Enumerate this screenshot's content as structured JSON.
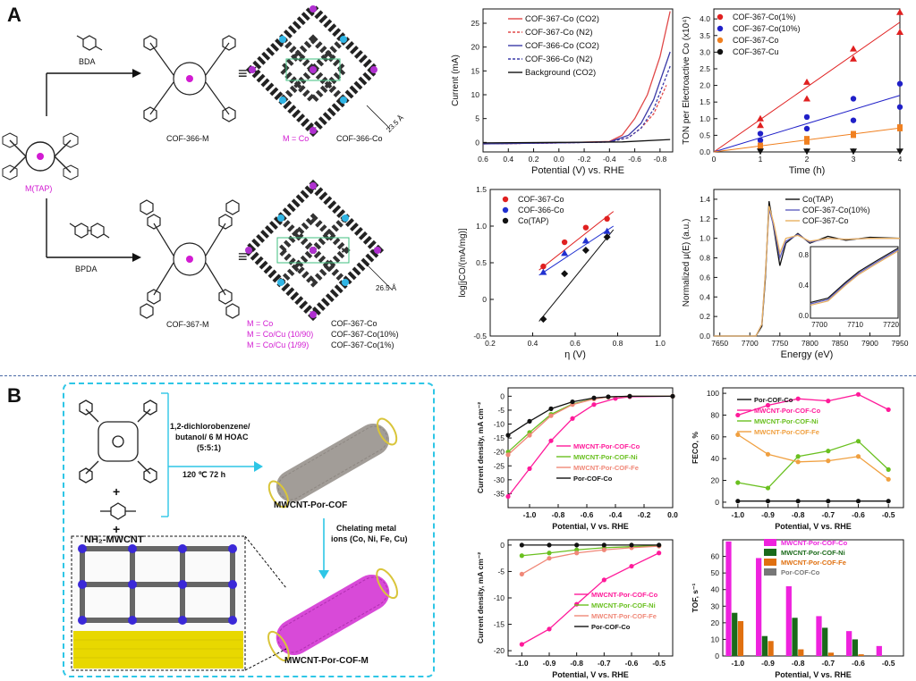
{
  "panelA": {
    "letter": "A",
    "scheme": {
      "reagent_top": "BDA",
      "reagent_bottom": "BPDA",
      "precursor_label": "M(TAP)",
      "cof366_label": "COF-366-M",
      "cof367_label": "COF-367-M",
      "eq": "≡",
      "top_metal_line": "M = Co",
      "top_metal_product": "COF-366-Co",
      "top_distance": "23.5 Å",
      "bottom_distance": "26.5 Å",
      "bottom_metals": [
        "M = Co",
        "M = Co/Cu (10/90)",
        "M = Co/Cu (1/99)"
      ],
      "bottom_products": [
        "COF-367-Co",
        "COF-367-Co(10%)",
        "COF-367-Co(1%)"
      ]
    }
  },
  "panelB": {
    "letter": "B",
    "scheme": {
      "conditions_1": "1,2-dichlorobenzene/",
      "conditions_2": "butanol/ 6 M HOAC",
      "conditions_3": "(5:5:1)",
      "conditions_4": "120 ℃  72 h",
      "product1": "MWCNT-Por-COF",
      "chelating_1": "Chelating metal",
      "chelating_2": "ions (Co, Ni, Fe, Cu)",
      "product2": "MWCNT-Por-COF-M",
      "reagent_cnt": "NH₂-MWCNT",
      "plus": "+"
    }
  },
  "chart_data": [
    {
      "id": "A1",
      "type": "line",
      "xlabel": "Potential (V) vs. RHE",
      "ylabel": "Current (mA)",
      "xlim": [
        0.6,
        -0.9
      ],
      "ylim": [
        -2,
        28
      ],
      "xticks": [
        "0.6",
        "0.4",
        "0.2",
        "0.0",
        "-0.2",
        "-0.4",
        "-0.6",
        "-0.8"
      ],
      "yticks": [
        "0",
        "5",
        "10",
        "15",
        "20",
        "25"
      ],
      "legend": [
        "COF-367-Co (CO2)",
        "COF-367-Co (N2)",
        "COF-366-Co (CO2)",
        "COF-366-Co (N2)",
        "Background (CO2)"
      ],
      "colors": [
        "#e04848",
        "#e04848",
        "#3a3aa8",
        "#3a3aa8",
        "#111111"
      ],
      "series": [
        {
          "name": "COF-367-Co (CO2)",
          "x": [
            0.6,
            0.0,
            -0.4,
            -0.5,
            -0.6,
            -0.7,
            -0.8,
            -0.88
          ],
          "values": [
            -0.3,
            -0.1,
            0.2,
            1.5,
            5,
            10,
            18,
            27.5
          ]
        },
        {
          "name": "COF-367-Co (N2)",
          "x": [
            0.6,
            0.0,
            -0.4,
            -0.55,
            -0.65,
            -0.75,
            -0.85
          ],
          "values": [
            -0.3,
            -0.1,
            0.1,
            1,
            3,
            6,
            12
          ]
        },
        {
          "name": "COF-366-Co (CO2)",
          "x": [
            0.6,
            0.0,
            -0.4,
            -0.55,
            -0.65,
            -0.75,
            -0.88
          ],
          "values": [
            -0.3,
            -0.1,
            0.1,
            1.5,
            4,
            9,
            19
          ]
        },
        {
          "name": "COF-366-Co (N2)",
          "x": [
            0.6,
            0.0,
            -0.4,
            -0.55,
            -0.65,
            -0.75,
            -0.88
          ],
          "values": [
            -0.3,
            -0.1,
            0.1,
            1,
            3,
            7,
            16
          ]
        },
        {
          "name": "Background (CO2)",
          "x": [
            0.6,
            0.0,
            -0.5,
            -0.88
          ],
          "values": [
            -0.1,
            0,
            0.1,
            0.6
          ]
        }
      ]
    },
    {
      "id": "A2",
      "type": "scatter",
      "xlabel": "Time (h)",
      "ylabel": "TON per Electroactive Co (x10⁴)",
      "xlim": [
        0,
        4
      ],
      "ylim": [
        0,
        4.3
      ],
      "xticks": [
        "0",
        "1",
        "2",
        "3",
        "4"
      ],
      "yticks": [
        "0.0",
        "0.5",
        "1.0",
        "1.5",
        "2.0",
        "2.5",
        "3.0",
        "3.5",
        "4.0"
      ],
      "legend": [
        "COF-367-Co(1%)",
        "COF-367-Co(10%)",
        "COF-367-Co",
        "COF-367-Cu"
      ],
      "colors": [
        "#e02020",
        "#2020c8",
        "#f08020",
        "#111111"
      ],
      "series": [
        {
          "name": "COF-367-Co(1%)",
          "x": [
            1,
            1,
            2,
            2,
            3,
            3,
            4,
            4
          ],
          "values": [
            1.0,
            0.8,
            2.1,
            1.6,
            3.1,
            2.8,
            4.2,
            3.6
          ]
        },
        {
          "name": "COF-367-Co(10%)",
          "x": [
            1,
            1,
            2,
            2,
            3,
            3,
            4,
            4
          ],
          "values": [
            0.55,
            0.35,
            1.05,
            0.7,
            1.6,
            0.95,
            2.05,
            1.35
          ]
        },
        {
          "name": "COF-367-Co",
          "x": [
            1,
            1,
            2,
            2,
            3,
            3,
            4,
            4
          ],
          "values": [
            0.2,
            0.15,
            0.4,
            0.3,
            0.55,
            0.5,
            0.75,
            0.7
          ]
        },
        {
          "name": "COF-367-Cu",
          "x": [
            1,
            2,
            3,
            4
          ],
          "values": [
            0.02,
            0.02,
            0.02,
            0.02
          ]
        }
      ],
      "fits": [
        {
          "name": "COF-367-Co(1%)",
          "x": [
            0,
            4
          ],
          "values": [
            0,
            3.9
          ]
        },
        {
          "name": "COF-367-Co(10%)",
          "x": [
            0,
            4
          ],
          "values": [
            0,
            1.7
          ]
        },
        {
          "name": "COF-367-Co",
          "x": [
            0,
            4
          ],
          "values": [
            0,
            0.72
          ]
        }
      ]
    },
    {
      "id": "A3",
      "type": "scatter",
      "xlabel": "η (V)",
      "ylabel": "log[jCO/(mA/mg)]",
      "xlim": [
        0.2,
        1.0
      ],
      "ylim": [
        -0.5,
        1.5
      ],
      "xticks": [
        "0.2",
        "0.4",
        "0.6",
        "0.8",
        "1.0"
      ],
      "yticks": [
        "-0.5",
        "0",
        "0.5",
        "1.0",
        "1.5"
      ],
      "legend": [
        "COF-367-Co",
        "COF-366-Co",
        "Co(TAP)"
      ],
      "colors": [
        "#e02020",
        "#2030d0",
        "#111111"
      ],
      "series": [
        {
          "name": "COF-367-Co",
          "x": [
            0.45,
            0.55,
            0.65,
            0.75
          ],
          "values": [
            0.45,
            0.78,
            0.98,
            1.1
          ]
        },
        {
          "name": "COF-366-Co",
          "x": [
            0.45,
            0.55,
            0.65,
            0.75
          ],
          "values": [
            0.37,
            0.63,
            0.8,
            0.93
          ]
        },
        {
          "name": "Co(TAP)",
          "x": [
            0.45,
            0.55,
            0.65,
            0.75
          ],
          "values": [
            -0.27,
            0.35,
            0.67,
            0.85
          ]
        }
      ],
      "fits": [
        {
          "name": "COF-367-Co",
          "x": [
            0.43,
            0.78
          ],
          "values": [
            0.4,
            1.2
          ]
        },
        {
          "name": "COF-366-Co",
          "x": [
            0.43,
            0.78
          ],
          "values": [
            0.33,
            1.0
          ]
        },
        {
          "name": "Co(TAP)",
          "x": [
            0.43,
            0.78
          ],
          "values": [
            -0.3,
            0.95
          ]
        }
      ]
    },
    {
      "id": "A4",
      "type": "line",
      "xlabel": "Energy (eV)",
      "ylabel": "Normalized μ(E) (a.u.)",
      "xlim": [
        7640,
        7950
      ],
      "ylim": [
        0,
        1.5
      ],
      "xticks": [
        "7650",
        "7700",
        "7750",
        "7800",
        "7850",
        "7900",
        "7950"
      ],
      "yticks": [
        "0.0",
        "0.2",
        "0.4",
        "0.6",
        "0.8",
        "1.0",
        "1.2",
        "1.4"
      ],
      "legend": [
        "Co(TAP)",
        "COF-367-Co(10%)",
        "COF-367-Co"
      ],
      "colors": [
        "#111111",
        "#6060c0",
        "#e8b060"
      ],
      "inset": {
        "xticks": [
          "7700",
          "7710",
          "7720"
        ],
        "yticks": [
          "0.0",
          "0.4",
          "0.8"
        ]
      },
      "series": [
        {
          "name": "Co(TAP)",
          "x": [
            7640,
            7710,
            7720,
            7726,
            7732,
            7740,
            7750,
            7760,
            7780,
            7800,
            7830,
            7860,
            7900,
            7950
          ],
          "values": [
            0,
            0,
            0.1,
            0.6,
            1.38,
            1.1,
            0.72,
            0.95,
            1.05,
            0.95,
            1.02,
            0.98,
            1.01,
            1.0
          ]
        },
        {
          "name": "COF-367-Co(10%)",
          "x": [
            7640,
            7710,
            7720,
            7726,
            7732,
            7740,
            7750,
            7760,
            7780,
            7800,
            7830,
            7860,
            7900,
            7950
          ],
          "values": [
            0,
            0,
            0.12,
            0.65,
            1.3,
            1.12,
            0.8,
            0.97,
            1.04,
            0.96,
            1.0,
            0.99,
            1.0,
            1.0
          ]
        },
        {
          "name": "COF-367-Co",
          "x": [
            7640,
            7710,
            7720,
            7726,
            7732,
            7740,
            7750,
            7760,
            7780,
            7800,
            7830,
            7860,
            7900,
            7950
          ],
          "values": [
            0,
            0,
            0.12,
            0.65,
            1.33,
            1.15,
            0.85,
            1.0,
            1.03,
            0.97,
            1.0,
            0.99,
            1.0,
            1.0
          ]
        }
      ]
    },
    {
      "id": "B1",
      "type": "line",
      "xlabel": "Potential, V vs. RHE",
      "ylabel": "Current density, mA cm⁻²",
      "xlim": [
        -1.15,
        0.0
      ],
      "ylim": [
        -40,
        3
      ],
      "xticks": [
        "-1.0",
        "-0.8",
        "-0.6",
        "-0.4",
        "-0.2",
        "0.0"
      ],
      "yticks": [
        "-35",
        "-30",
        "-25",
        "-20",
        "-15",
        "-10",
        "-5",
        "0"
      ],
      "legend": [
        "MWCNT-Por-COF-Co",
        "MWCNT-Por-COF-Ni",
        "MWCNT-Por-COF-Fe",
        "Por-COF-Co"
      ],
      "colors": [
        "#ff1a9a",
        "#6ac020",
        "#f08878",
        "#111111"
      ],
      "series": [
        {
          "name": "MWCNT-Por-COF-Co",
          "x": [
            -1.15,
            -1.0,
            -0.85,
            -0.7,
            -0.55,
            -0.4,
            -0.3,
            0.0
          ],
          "values": [
            -36,
            -26,
            -16,
            -8,
            -3,
            -0.8,
            -0.2,
            0
          ]
        },
        {
          "name": "MWCNT-Por-COF-Ni",
          "x": [
            -1.15,
            -1.0,
            -0.85,
            -0.7,
            -0.55,
            -0.45,
            -0.3,
            0.0
          ],
          "values": [
            -20,
            -13,
            -6.5,
            -2.8,
            -0.9,
            -0.3,
            0,
            0
          ]
        },
        {
          "name": "MWCNT-Por-COF-Fe",
          "x": [
            -1.15,
            -1.0,
            -0.85,
            -0.7,
            -0.55,
            -0.45,
            -0.3,
            0.0
          ],
          "values": [
            -21,
            -14,
            -7,
            -3,
            -1,
            -0.3,
            0,
            0
          ]
        },
        {
          "name": "Por-COF-Co",
          "x": [
            -1.15,
            -1.0,
            -0.85,
            -0.7,
            -0.55,
            -0.45,
            -0.3,
            0.0
          ],
          "values": [
            -14,
            -9,
            -4.5,
            -2,
            -0.6,
            -0.2,
            0,
            0
          ]
        }
      ]
    },
    {
      "id": "B2",
      "type": "line",
      "xlabel": "Potential, V vs. RHE",
      "ylabel": "FECO, %",
      "xlim": [
        -1.05,
        -0.45
      ],
      "ylim": [
        -5,
        105
      ],
      "xticks": [
        "-1.0",
        "-0.9",
        "-0.8",
        "-0.7",
        "-0.6",
        "-0.5"
      ],
      "yticks": [
        "0",
        "20",
        "40",
        "60",
        "80",
        "100"
      ],
      "legend": [
        "Por-COF-Co",
        "MWCNT-Por-COF-Co",
        "MWCNT-Por-COF-Ni",
        "MWCNT-Por-COF-Fe"
      ],
      "colors": [
        "#111111",
        "#ff1a9a",
        "#6ac020",
        "#f0a040"
      ],
      "series": [
        {
          "name": "Por-COF-Co",
          "x": [
            -1.0,
            -0.9,
            -0.8,
            -0.7,
            -0.6,
            -0.5
          ],
          "values": [
            1,
            1,
            1,
            1,
            1,
            1
          ]
        },
        {
          "name": "MWCNT-Por-COF-Co",
          "x": [
            -1.0,
            -0.9,
            -0.8,
            -0.7,
            -0.6,
            -0.5
          ],
          "values": [
            80,
            89,
            95,
            93,
            99,
            85
          ]
        },
        {
          "name": "MWCNT-Por-COF-Ni",
          "x": [
            -1.0,
            -0.9,
            -0.8,
            -0.7,
            -0.6,
            -0.5
          ],
          "values": [
            18,
            13,
            42,
            47,
            56,
            30
          ]
        },
        {
          "name": "MWCNT-Por-COF-Fe",
          "x": [
            -1.0,
            -0.9,
            -0.8,
            -0.7,
            -0.6,
            -0.5
          ],
          "values": [
            62,
            44,
            37,
            38,
            42,
            21
          ]
        }
      ]
    },
    {
      "id": "B3",
      "type": "line",
      "xlabel": "Potential, V vs. RHE",
      "ylabel": "Current density, mA cm⁻²",
      "xlim": [
        -1.05,
        -0.45
      ],
      "ylim": [
        -21,
        1
      ],
      "xticks": [
        "-1.0",
        "-0.9",
        "-0.8",
        "-0.7",
        "-0.6",
        "-0.5"
      ],
      "yticks": [
        "-20",
        "-15",
        "-10",
        "-5",
        "0"
      ],
      "legend": [
        "MWCNT-Por-COF-Co",
        "MWCNT-Por-COF-Ni",
        "MWCNT-Por-COF-Fe",
        "Por-COF-Co"
      ],
      "colors": [
        "#ff1a9a",
        "#6ac020",
        "#f08878",
        "#111111"
      ],
      "series": [
        {
          "name": "MWCNT-Por-COF-Co",
          "x": [
            -1.0,
            -0.9,
            -0.8,
            -0.7,
            -0.6,
            -0.5
          ],
          "values": [
            -18.8,
            -15.9,
            -11.2,
            -6.6,
            -4.0,
            -1.5
          ]
        },
        {
          "name": "MWCNT-Por-COF-Ni",
          "x": [
            -1.0,
            -0.9,
            -0.8,
            -0.7,
            -0.6,
            -0.5
          ],
          "values": [
            -2,
            -1.5,
            -0.9,
            -0.5,
            -0.3,
            -0.1
          ]
        },
        {
          "name": "MWCNT-Por-COF-Fe",
          "x": [
            -1.0,
            -0.9,
            -0.8,
            -0.7,
            -0.6,
            -0.5
          ],
          "values": [
            -5.5,
            -2.5,
            -1.5,
            -0.9,
            -0.5,
            -0.2
          ]
        },
        {
          "name": "Por-COF-Co",
          "x": [
            -1.0,
            -0.9,
            -0.8,
            -0.7,
            -0.6,
            -0.5
          ],
          "values": [
            0,
            0,
            0,
            0,
            0,
            0
          ]
        }
      ]
    },
    {
      "id": "B4",
      "type": "bar",
      "xlabel": "Potential, V vs. RHE",
      "ylabel": "TOF, s⁻¹",
      "categories": [
        "-1.0",
        "-0.9",
        "-0.8",
        "-0.7",
        "-0.6",
        "-0.5"
      ],
      "ylim": [
        0,
        70
      ],
      "yticks": [
        "0",
        "10",
        "20",
        "30",
        "40",
        "50",
        "60"
      ],
      "legend": [
        "MWCNT-Por-COF-Co",
        "MWCNT-Por-COF-Ni",
        "MWCNT-Por-COF-Fe",
        "Por-COF-Co"
      ],
      "colors": [
        "#ee22dd",
        "#1a6a1a",
        "#e07010",
        "#777777"
      ],
      "series": [
        {
          "name": "MWCNT-Por-COF-Co",
          "values": [
            69,
            59,
            42,
            24,
            15,
            6
          ]
        },
        {
          "name": "MWCNT-Por-COF-Ni",
          "values": [
            26,
            12,
            23,
            17,
            10,
            0
          ]
        },
        {
          "name": "MWCNT-Por-COF-Fe",
          "values": [
            21,
            9,
            4,
            2,
            1,
            0
          ]
        },
        {
          "name": "Por-COF-Co",
          "values": [
            0.5,
            0.5,
            0.5,
            0.5,
            0.5,
            0
          ]
        }
      ]
    }
  ]
}
